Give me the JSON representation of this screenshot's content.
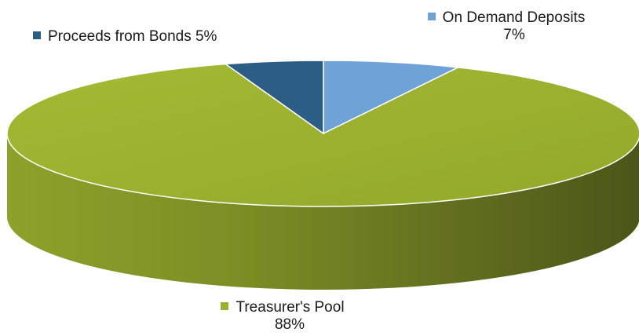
{
  "chart_data": {
    "type": "pie",
    "title": "",
    "slices": [
      {
        "name": "Treasurer's Pool",
        "value": 88,
        "label": "88%",
        "color": "#9bb12e"
      },
      {
        "name": "On Demand Deposits",
        "value": 7,
        "label": "7%",
        "color": "#6fa3d8"
      },
      {
        "name": "Proceeds from Bonds",
        "value": 5,
        "label": "5%",
        "color": "#2c5d84"
      }
    ],
    "legend_text": {
      "bonds": "Proceeds from Bonds 5%",
      "deposits_name": "On Demand Deposits",
      "deposits_pct": "7%",
      "pool_name": "Treasurer's Pool",
      "pool_pct": "88%"
    }
  }
}
